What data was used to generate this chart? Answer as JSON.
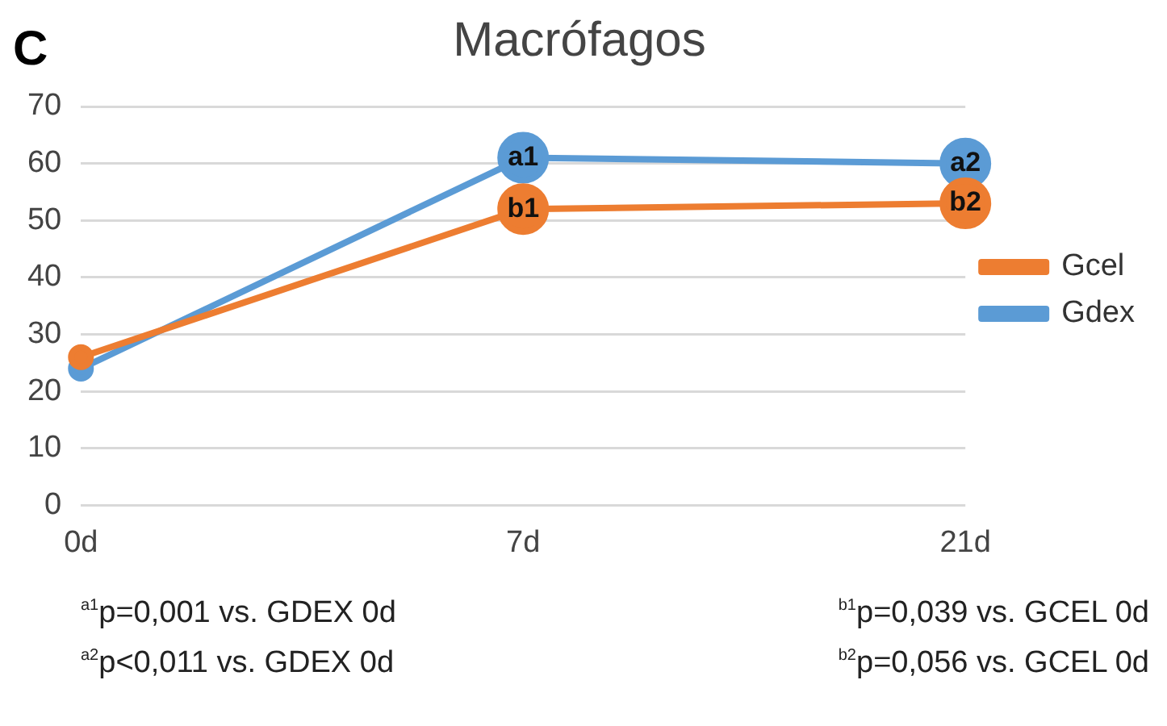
{
  "chart_data": {
    "type": "line",
    "title": "Macrófagos",
    "categories": [
      "0d",
      "7d",
      "21d"
    ],
    "series": [
      {
        "name": "Gcel",
        "color": "#ed7d31",
        "values": [
          26,
          52,
          53
        ]
      },
      {
        "name": "Gdex",
        "color": "#5b9bd5",
        "values": [
          24,
          61,
          60
        ]
      }
    ],
    "ylim": [
      0,
      70
    ],
    "yticks": [
      0,
      10,
      20,
      30,
      40,
      50,
      60,
      70
    ],
    "grid": "y",
    "legend": "right",
    "marker": "circle",
    "line_style": "solid",
    "annotations": [
      "C",
      {
        "text": "a1",
        "x": "7d",
        "y": 61
      },
      {
        "text": "a2",
        "x": "21d",
        "y": 60
      },
      {
        "text": "b1",
        "x": "7d",
        "y": 52
      },
      {
        "text": "b2",
        "x": "21d",
        "y": 53
      },
      "$^{a1}$p=0,001 vs. GDEX 0d",
      "$^{b1}$p=0,039 vs. GCEL 0d",
      "$^{a2}$p<0,011 vs. GDEX 0d",
      "$^{b2}$p=0,056 vs. GCEL 0d"
    ]
  }
}
